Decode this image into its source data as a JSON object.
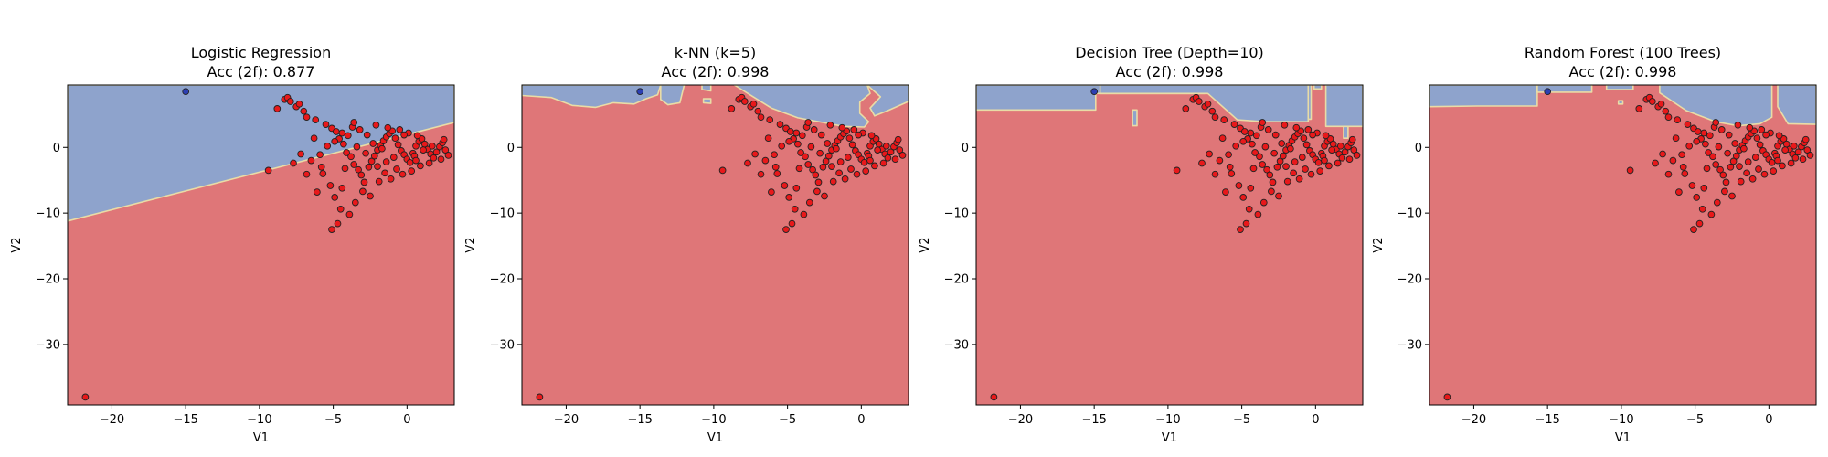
{
  "chart_data": [
    {
      "type": "scatter",
      "title": "Logistic Regression",
      "subtitle": "Acc (2f): 0.877",
      "xlabel": "V1",
      "ylabel": "V2",
      "xlim": [
        -23,
        3.2
      ],
      "ylim": [
        -39.2,
        9.5
      ],
      "xticks": [
        -20,
        -15,
        -10,
        -5,
        0
      ],
      "yticks": [
        -30,
        -20,
        -10,
        0
      ],
      "decision_region": {
        "kind": "linear",
        "boundary_x": [
          -23,
          3.2
        ],
        "boundary_y": [
          -11.2,
          3.8
        ]
      }
    },
    {
      "type": "scatter",
      "title": "k-NN (k=5)",
      "subtitle": "Acc (2f): 0.998",
      "xlabel": "V1",
      "ylabel": "V2",
      "xlim": [
        -23,
        3.2
      ],
      "ylim": [
        -39.2,
        9.5
      ],
      "xticks": [
        -20,
        -15,
        -10,
        -5,
        0
      ],
      "yticks": [
        -30,
        -20,
        -10,
        0
      ],
      "decision_region": {
        "kind": "knn"
      }
    },
    {
      "type": "scatter",
      "title": "Decision Tree (Depth=10)",
      "subtitle": "Acc (2f): 0.998",
      "xlabel": "V1",
      "ylabel": "V2",
      "xlim": [
        -23,
        3.2
      ],
      "ylim": [
        -39.2,
        9.5
      ],
      "xticks": [
        -20,
        -15,
        -10,
        -5,
        0
      ],
      "yticks": [
        -30,
        -20,
        -10,
        0
      ],
      "decision_region": {
        "kind": "tree"
      }
    },
    {
      "type": "scatter",
      "title": "Random Forest (100 Trees)",
      "subtitle": "Acc (2f): 0.998",
      "xlabel": "V1",
      "ylabel": "V2",
      "xlim": [
        -23,
        3.2
      ],
      "ylim": [
        -39.2,
        9.5
      ],
      "xticks": [
        -20,
        -15,
        -10,
        -5,
        0
      ],
      "yticks": [
        -30,
        -20,
        -10,
        0
      ],
      "decision_region": {
        "kind": "forest"
      }
    }
  ],
  "points": {
    "class_0": [
      [
        -15.0,
        8.5
      ]
    ],
    "class_1": [
      [
        -21.8,
        -38.0
      ],
      [
        -9.4,
        -3.5
      ],
      [
        -8.3,
        7.3
      ],
      [
        -8.1,
        7.6
      ],
      [
        -7.9,
        7.0
      ],
      [
        -7.5,
        6.2
      ],
      [
        -7.3,
        6.6
      ],
      [
        -7.0,
        5.5
      ],
      [
        -6.8,
        4.6
      ],
      [
        -6.2,
        4.2
      ],
      [
        -5.5,
        3.5
      ],
      [
        -5.1,
        2.9
      ],
      [
        -4.8,
        2.4
      ],
      [
        -4.6,
        1.3
      ],
      [
        -4.3,
        0.5
      ],
      [
        -4.1,
        -0.8
      ],
      [
        -3.8,
        -1.4
      ],
      [
        -3.6,
        -2.6
      ],
      [
        -3.3,
        -3.4
      ],
      [
        -3.1,
        -4.2
      ],
      [
        -2.9,
        -5.3
      ],
      [
        -2.6,
        -3.0
      ],
      [
        -2.4,
        -2.1
      ],
      [
        -2.2,
        -1.3
      ],
      [
        -2.0,
        -0.4
      ],
      [
        -1.8,
        0.3
      ],
      [
        -1.6,
        1.0
      ],
      [
        -1.4,
        1.6
      ],
      [
        -1.2,
        2.1
      ],
      [
        -1.0,
        2.5
      ],
      [
        -0.8,
        1.4
      ],
      [
        -0.6,
        0.4
      ],
      [
        -0.4,
        -0.5
      ],
      [
        -0.2,
        -1.1
      ],
      [
        0.0,
        -1.8
      ],
      [
        0.2,
        -2.3
      ],
      [
        0.4,
        -0.9
      ],
      [
        0.6,
        0.2
      ],
      [
        0.8,
        0.9
      ],
      [
        1.0,
        1.3
      ],
      [
        1.2,
        0.5
      ],
      [
        1.4,
        -0.3
      ],
      [
        1.6,
        -1.0
      ],
      [
        1.8,
        -1.6
      ],
      [
        2.0,
        -0.7
      ],
      [
        2.2,
        0.1
      ],
      [
        2.4,
        0.7
      ],
      [
        2.6,
        -0.4
      ],
      [
        2.8,
        -1.2
      ],
      [
        -6.1,
        -6.8
      ],
      [
        -5.7,
        -4.0
      ],
      [
        -5.2,
        -5.8
      ],
      [
        -4.9,
        -7.6
      ],
      [
        -4.5,
        -9.4
      ],
      [
        -4.7,
        -11.6
      ],
      [
        -5.1,
        -12.5
      ],
      [
        -3.9,
        -10.2
      ],
      [
        -3.5,
        -8.4
      ],
      [
        -4.4,
        -6.2
      ],
      [
        -3.0,
        -6.7
      ],
      [
        -2.5,
        -7.4
      ],
      [
        -1.9,
        -5.2
      ],
      [
        -1.5,
        -3.9
      ],
      [
        -1.1,
        -4.8
      ],
      [
        -0.7,
        -3.3
      ],
      [
        -0.3,
        -4.1
      ],
      [
        0.3,
        -3.6
      ],
      [
        0.9,
        -2.8
      ],
      [
        1.5,
        -2.4
      ],
      [
        -2.7,
        1.9
      ],
      [
        -3.2,
        2.7
      ],
      [
        -3.7,
        3.1
      ],
      [
        -2.1,
        3.4
      ],
      [
        -1.3,
        3.0
      ],
      [
        -0.5,
        2.7
      ],
      [
        0.1,
        2.2
      ],
      [
        0.7,
        1.8
      ],
      [
        -6.8,
        -4.1
      ],
      [
        -7.7,
        -2.4
      ],
      [
        -6.5,
        -2.0
      ],
      [
        -5.9,
        -1.1
      ],
      [
        -5.4,
        0.2
      ],
      [
        -4.9,
        0.9
      ],
      [
        -4.0,
        1.8
      ],
      [
        -3.4,
        0.1
      ],
      [
        -2.8,
        -0.9
      ],
      [
        -2.3,
        0.6
      ],
      [
        -1.7,
        -0.2
      ],
      [
        -0.9,
        -1.5
      ],
      [
        0.5,
        -1.3
      ],
      [
        1.1,
        -0.4
      ],
      [
        1.7,
        0.2
      ],
      [
        2.3,
        -1.8
      ],
      [
        2.5,
        1.2
      ],
      [
        -3.6,
        3.8
      ],
      [
        -4.4,
        2.2
      ],
      [
        -5.8,
        -3.0
      ],
      [
        -6.3,
        1.4
      ],
      [
        -8.8,
        5.9
      ],
      [
        -7.2,
        -1.0
      ],
      [
        -4.2,
        -3.2
      ],
      [
        -2.0,
        -2.9
      ],
      [
        -1.4,
        -2.2
      ],
      [
        -0.2,
        1.9
      ],
      [
        0.6,
        -2.0
      ]
    ]
  }
}
